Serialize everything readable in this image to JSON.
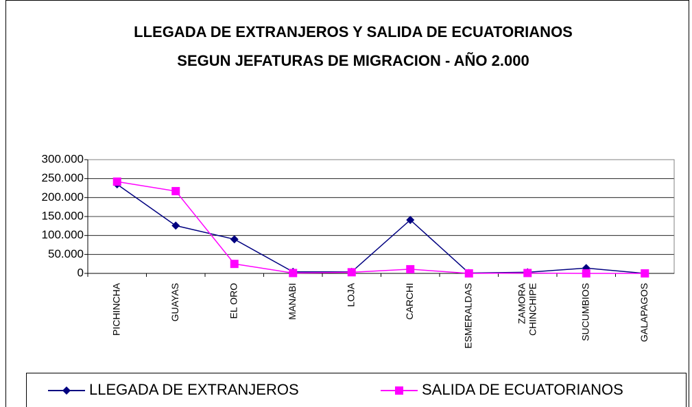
{
  "chart_data": {
    "type": "line",
    "title": [
      "LLEGADA DE EXTRANJEROS Y SALIDA DE ECUATORIANOS",
      "SEGUN JEFATURAS DE MIGRACION - AÑO 2.000"
    ],
    "categories": [
      "PICHINCHA",
      "GUAYAS",
      "EL ORO",
      "MANABI",
      "LOJA",
      "CARCHI",
      "ESMERALDAS",
      "ZAMORA CHINCHIPE",
      "SUCUMBIOS",
      "GALAPAGOS"
    ],
    "series": [
      {
        "name": "LLEGADA DE EXTRANJEROS",
        "color": "#000080",
        "marker": "diamond",
        "values": [
          235000,
          126000,
          90000,
          4000,
          4000,
          141000,
          1000,
          3000,
          14000,
          0
        ]
      },
      {
        "name": "SALIDA DE ECUATORIANOS",
        "color": "#ff00ff",
        "marker": "square",
        "values": [
          242000,
          217000,
          25000,
          1000,
          3000,
          11000,
          0,
          1000,
          0,
          0
        ]
      }
    ],
    "ylim": [
      0,
      300000
    ],
    "yticks": [
      0,
      {
        "value": 50000,
        "label": "50.000"
      },
      {
        "value": 100000,
        "label": "100.000"
      },
      {
        "value": 150000,
        "label": "150.000"
      },
      {
        "value": 200000,
        "label": "200.000"
      },
      {
        "value": 250000,
        "label": "250.000"
      },
      {
        "value": 300000,
        "label": "300.000"
      }
    ],
    "grid": true
  }
}
